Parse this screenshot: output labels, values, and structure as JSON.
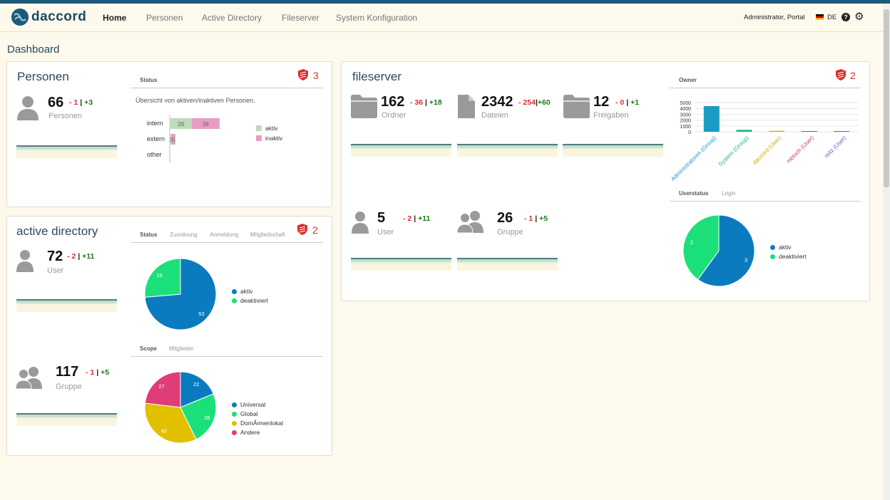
{
  "nav": {
    "brand": "daccord",
    "items": [
      "Home",
      "Personen",
      "Active Directory",
      "Fileserver",
      "System Konfiguration"
    ],
    "user": "Administrator, Portal",
    "lang": "DE"
  },
  "page_title": "Dashboard",
  "personen": {
    "title": "Personen",
    "alerts": "3",
    "value": "66",
    "neg": "- 1",
    "sep": "|",
    "pos": "+3",
    "label": "Personen",
    "tab": "Status",
    "subtitle": "Übersicht von aktiven/inaktiven Personen.",
    "legend": [
      "aktiv",
      "inaktiv"
    ]
  },
  "ad": {
    "title": "active directory",
    "alerts": "2",
    "user": {
      "value": "72",
      "neg": "- 2",
      "sep": "|",
      "pos": "+11",
      "label": "User"
    },
    "group": {
      "value": "117",
      "neg": "- 1",
      "sep": "|",
      "pos": "+5",
      "label": "Gruppe"
    },
    "tabs": [
      "Status",
      "Zuordnung",
      "Anmeldung",
      "Mitgliedschaft"
    ],
    "scope_tabs": [
      "Scope",
      "Mitglieder"
    ]
  },
  "fs": {
    "title": "fileserver",
    "alerts": "2",
    "ordner": {
      "value": "162",
      "neg": "- 36",
      "sep": "|",
      "pos": "+18",
      "label": "Ordner"
    },
    "dateien": {
      "value": "2342",
      "neg": "- 254",
      "sep": "|",
      "pos": "+60",
      "label": "Dateien"
    },
    "freigaben": {
      "value": "12",
      "neg": "- 0",
      "sep": "|",
      "pos": "+1",
      "label": "Freigaben"
    },
    "user": {
      "value": "5",
      "neg": "- 2",
      "sep": "|",
      "pos": "+11",
      "label": "User"
    },
    "gruppe": {
      "value": "26",
      "neg": "- 1",
      "sep": "|",
      "pos": "+5",
      "label": "Gruppe"
    },
    "owner_tab": "Owner",
    "status_tabs": [
      "Userstatus",
      "Login"
    ]
  },
  "chart_data": [
    {
      "type": "bar",
      "name": "personen-status",
      "orientation": "horizontal",
      "stacked": true,
      "categories": [
        "intern",
        "extern",
        "other"
      ],
      "series": [
        {
          "name": "aktiv",
          "values": [
            26,
            1,
            0
          ],
          "color": "#bcdcbc"
        },
        {
          "name": "inaktiv",
          "values": [
            34,
            5,
            0
          ],
          "color": "#e79dc3"
        }
      ]
    },
    {
      "type": "pie",
      "name": "ad-user-status",
      "labels": [
        "aktiv",
        "deaktiviert"
      ],
      "values": [
        53,
        19
      ],
      "colors": [
        "#0b7bc0",
        "#1be07a"
      ]
    },
    {
      "type": "pie",
      "name": "ad-group-scope",
      "labels": [
        "Universal",
        "Global",
        "DomÃ¤nenlokal",
        "Andere"
      ],
      "values": [
        22,
        28,
        40,
        27
      ],
      "colors": [
        "#0b7bc0",
        "#1be07a",
        "#e2c000",
        "#e03c78"
      ]
    },
    {
      "type": "bar",
      "name": "fs-owner",
      "categories": [
        "Administratoren (Group)",
        "System (Group)",
        "daccord (User)",
        "mbloch (User)",
        "reitz (User)"
      ],
      "values": [
        4400,
        330,
        150,
        10,
        10
      ],
      "colors": [
        "#1a9cc4",
        "#1fb38c",
        "#c9a800",
        "#d6364c",
        "#6a5ac8"
      ],
      "yticks": [
        "5000",
        "4000",
        "3000",
        "2000",
        "1000",
        "0"
      ],
      "ylim": [
        0,
        5000
      ]
    },
    {
      "type": "pie",
      "name": "fs-userstatus",
      "labels": [
        "aktiv",
        "deaktiviert"
      ],
      "values": [
        3,
        2
      ],
      "colors": [
        "#0b7bc0",
        "#1be07a"
      ]
    }
  ]
}
